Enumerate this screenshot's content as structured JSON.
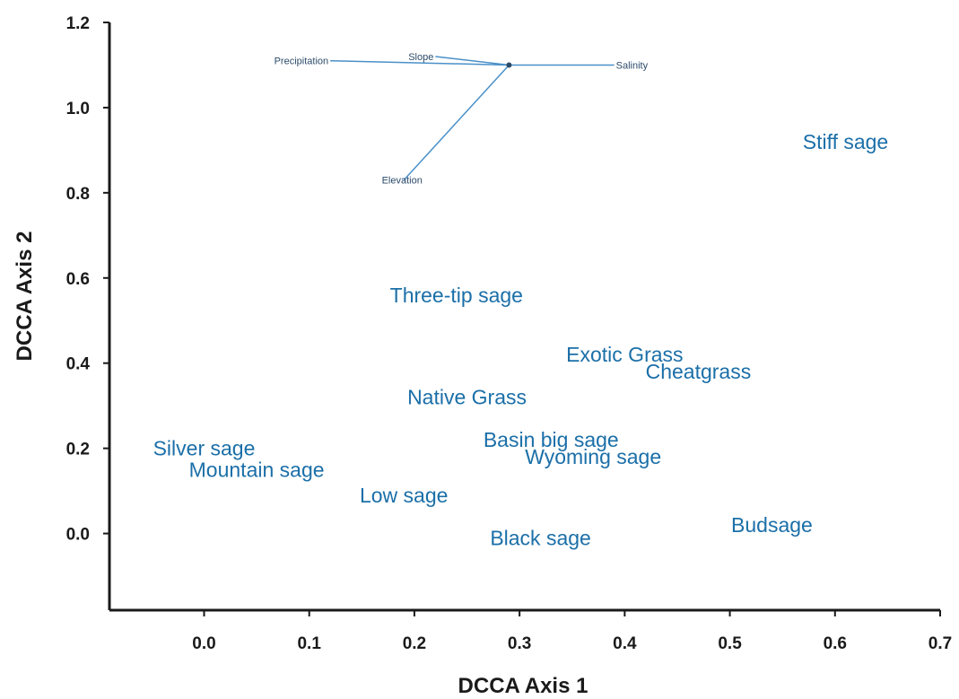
{
  "chart_data": {
    "type": "scatter",
    "title": "",
    "xlabel": "DCCA Axis 1",
    "ylabel": "DCCA Axis 2",
    "xlim": [
      -0.09,
      0.7
    ],
    "ylim": [
      -0.18,
      1.2
    ],
    "xticks": [
      0.0,
      0.1,
      0.2,
      0.3,
      0.4,
      0.5,
      0.6,
      0.7
    ],
    "xtick_labels": [
      "0.0",
      "0.1",
      "0.2",
      "0.3",
      "0.4",
      "0.5",
      "0.6",
      "0.7"
    ],
    "yticks": [
      0.0,
      0.2,
      0.4,
      0.6,
      0.8,
      1.0,
      1.2
    ],
    "ytick_labels": [
      "0.0",
      "0.2",
      "0.4",
      "0.6",
      "0.8",
      "1.0",
      "1.2"
    ],
    "grid": false,
    "color": "#1b6fa8",
    "species": [
      {
        "label": "Stiff sage",
        "x": 0.61,
        "y": 0.92
      },
      {
        "label": "Three-tip sage",
        "x": 0.24,
        "y": 0.56
      },
      {
        "label": "Exotic Grass",
        "x": 0.4,
        "y": 0.42
      },
      {
        "label": "Cheatgrass",
        "x": 0.47,
        "y": 0.38
      },
      {
        "label": "Native Grass",
        "x": 0.25,
        "y": 0.32
      },
      {
        "label": "Basin big sage",
        "x": 0.33,
        "y": 0.22
      },
      {
        "label": "Wyoming sage",
        "x": 0.37,
        "y": 0.18
      },
      {
        "label": "Silver sage",
        "x": 0.0,
        "y": 0.2
      },
      {
        "label": "Mountain sage",
        "x": 0.05,
        "y": 0.15
      },
      {
        "label": "Low sage",
        "x": 0.19,
        "y": 0.09
      },
      {
        "label": "Black sage",
        "x": 0.32,
        "y": -0.01
      },
      {
        "label": "Budsage",
        "x": 0.54,
        "y": 0.02
      }
    ],
    "environment_vectors": {
      "origin": {
        "x": 0.29,
        "y": 1.1
      },
      "vectors": [
        {
          "label": "Precipitation",
          "x": 0.12,
          "y": 1.11
        },
        {
          "label": "Slope",
          "x": 0.22,
          "y": 1.12
        },
        {
          "label": "Salinity",
          "x": 0.39,
          "y": 1.1
        },
        {
          "label": "Elevation",
          "x": 0.19,
          "y": 0.83
        }
      ]
    }
  }
}
